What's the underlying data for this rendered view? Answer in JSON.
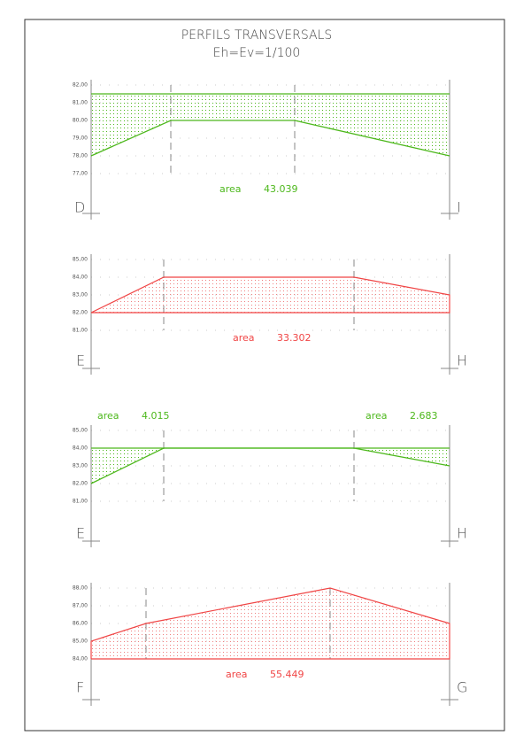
{
  "header": {
    "title": "PERFILS TRANSVERSALS",
    "scale": "Eh=Ev=1/100"
  },
  "sections": [
    {
      "ticks": [
        "82,00",
        "81,00",
        "80,00",
        "79,00",
        "78,00",
        "77,00"
      ],
      "areas": [
        {
          "label": "area",
          "value": "43.039"
        }
      ],
      "left": "D",
      "right": "I"
    },
    {
      "ticks": [
        "85,00",
        "84,00",
        "83,00",
        "82,00",
        "81,00"
      ],
      "areas": [
        {
          "label": "area",
          "value": "33.302"
        }
      ],
      "left": "E",
      "right": "H"
    },
    {
      "ticks": [
        "85,00",
        "84,00",
        "83,00",
        "82,00",
        "81,00"
      ],
      "areas": [
        {
          "label": "area",
          "value": "4.015"
        },
        {
          "label": "area",
          "value": "2.683"
        }
      ],
      "left": "E",
      "right": "H"
    },
    {
      "ticks": [
        "88,00",
        "87,00",
        "86,00",
        "85,00",
        "84,00"
      ],
      "areas": [
        {
          "label": "area",
          "value": "55.449"
        }
      ],
      "left": "F",
      "right": "G"
    }
  ]
}
